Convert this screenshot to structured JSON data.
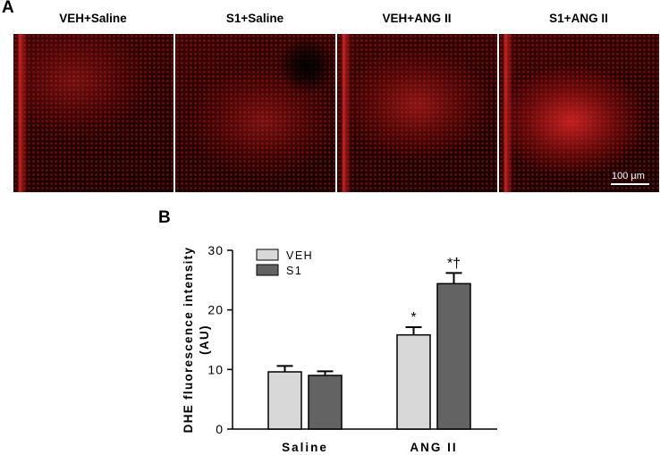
{
  "panel_a": {
    "letter": "A",
    "panels": [
      {
        "label": "VEH+Saline",
        "intensity": 0.35
      },
      {
        "label": "S1+Saline",
        "intensity": 0.4
      },
      {
        "label": "VEH+ANG II",
        "intensity": 0.5
      },
      {
        "label": "S1+ANG II",
        "intensity": 0.8
      }
    ],
    "scale_bar": "100 µm"
  },
  "panel_b": {
    "letter": "B"
  },
  "chart_data": {
    "type": "bar",
    "categories": [
      "Saline",
      "ANG II"
    ],
    "series": [
      {
        "name": "VEH",
        "values": [
          9.6,
          15.8
        ],
        "errors": [
          1.0,
          1.3
        ],
        "color": "#d8d8d8"
      },
      {
        "name": "S1",
        "values": [
          9.0,
          24.4
        ],
        "errors": [
          0.7,
          1.8
        ],
        "color": "#636363"
      }
    ],
    "annotations": [
      {
        "category": "ANG II",
        "series": "VEH",
        "text": "*"
      },
      {
        "category": "ANG II",
        "series": "S1",
        "text": "*†"
      }
    ],
    "ylabel": "DHE fluorescence intensity (AU)",
    "ylabel_lines": [
      "DHE fluorescence intensity",
      "(AU)"
    ],
    "ylim": [
      0,
      30
    ],
    "yticks": [
      0,
      10,
      20,
      30
    ],
    "legend": "top-left",
    "grid": false
  }
}
